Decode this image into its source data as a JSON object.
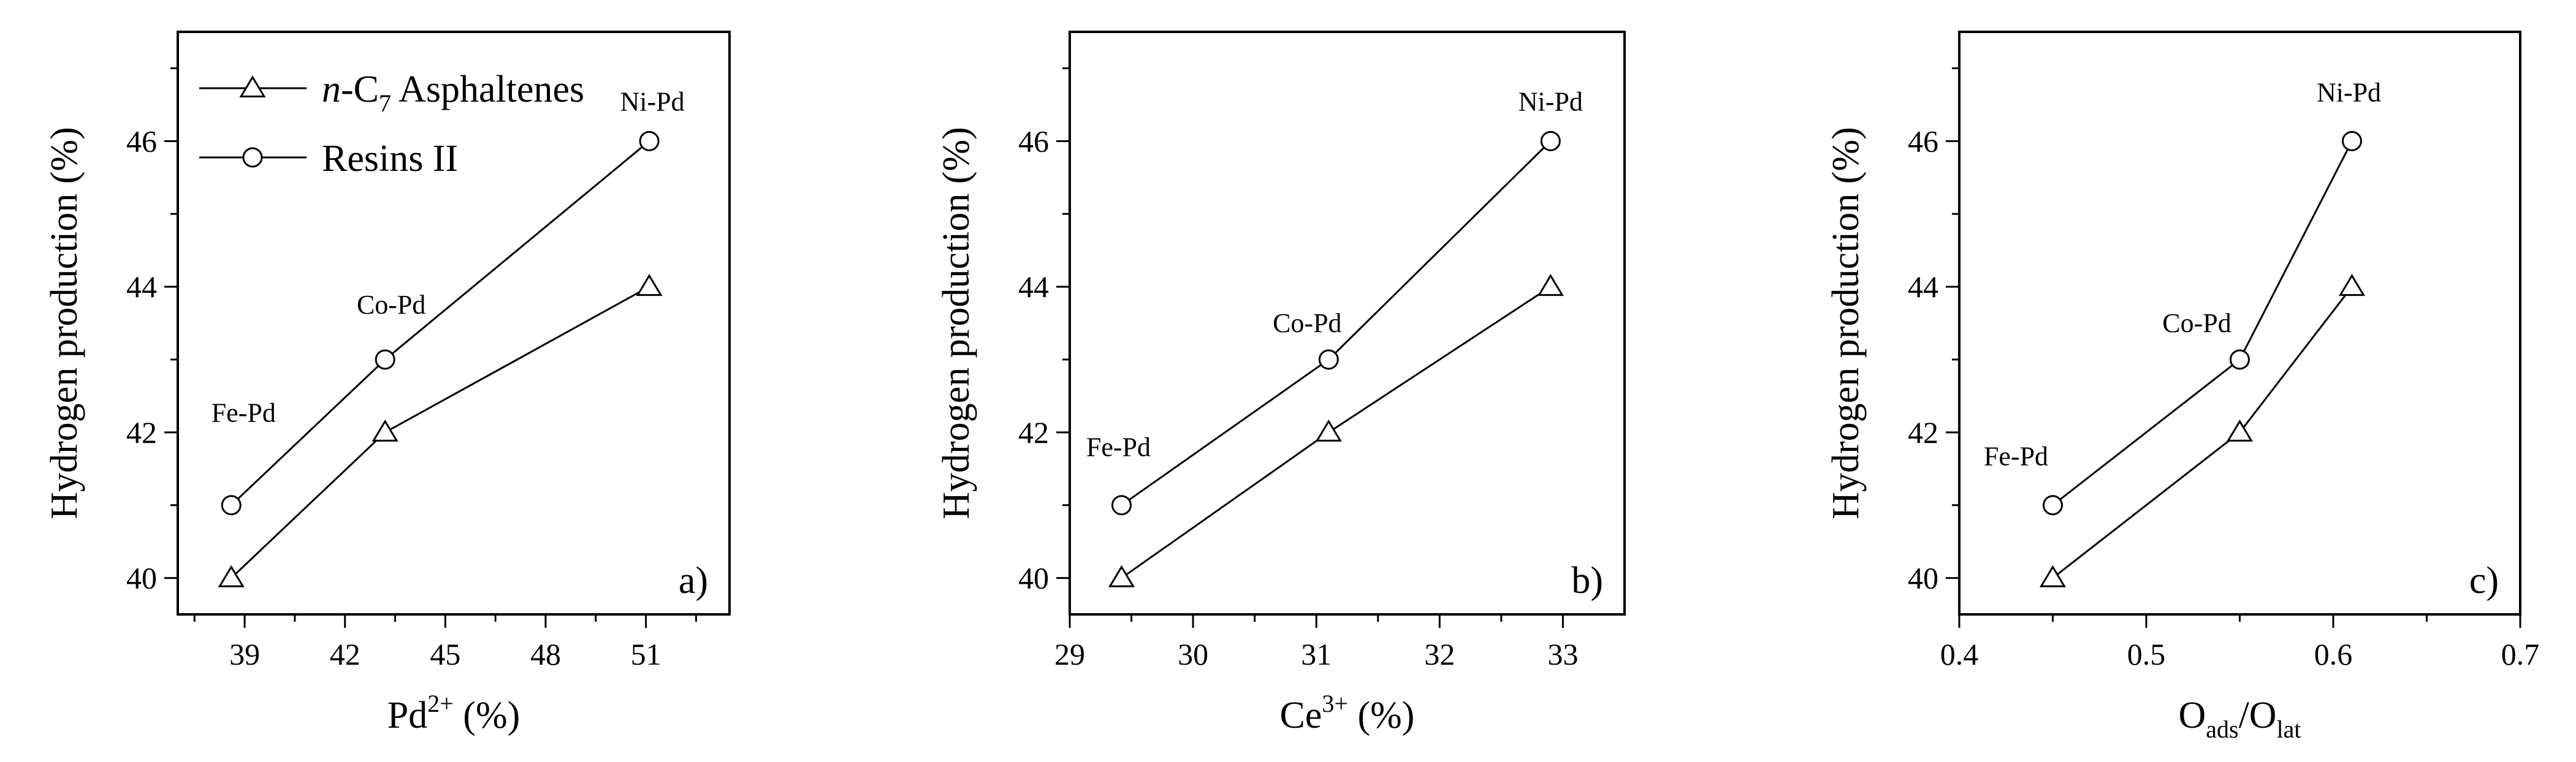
{
  "chart_data": [
    {
      "type": "line",
      "panel_label": "a)",
      "xlabel": "Pd",
      "xlabel_sup": "2+",
      "xlabel_suffix": " (%)",
      "ylabel": "Hydrogen production (%)",
      "xlim": [
        37,
        53.5
      ],
      "ylim": [
        39.5,
        47.5
      ],
      "xticks": [
        39,
        42,
        45,
        48,
        51
      ],
      "xtick_labels": [
        "39",
        "42",
        "45",
        "48",
        "51"
      ],
      "yticks": [
        40,
        42,
        44,
        46
      ],
      "ytick_labels": [
        "40",
        "42",
        "44",
        "46"
      ],
      "point_labels": [
        "Fe-Pd",
        "Co-Pd",
        "Ni-Pd"
      ],
      "legend": {
        "position": "top-left",
        "entries": [
          {
            "italic": "n",
            "text": "-C",
            "sub": "7",
            "rest": " Asphaltenes",
            "marker": "triangle"
          },
          {
            "text": "Resins II",
            "marker": "circle"
          }
        ]
      },
      "series": [
        {
          "marker": "triangle",
          "x": [
            38.6,
            43.2,
            51.1
          ],
          "y": [
            40,
            42,
            44
          ]
        },
        {
          "marker": "circle",
          "x": [
            38.6,
            43.2,
            51.1
          ],
          "y": [
            41,
            43,
            46
          ]
        }
      ]
    },
    {
      "type": "line",
      "panel_label": "b)",
      "xlabel": "Ce",
      "xlabel_sup": "3+",
      "xlabel_suffix": " (%)",
      "ylabel": "Hydrogen production (%)",
      "xlim": [
        29,
        33.5
      ],
      "ylim": [
        39.5,
        47.5
      ],
      "xticks": [
        29,
        30,
        31,
        32,
        33
      ],
      "xtick_labels": [
        "29",
        "30",
        "31",
        "32",
        "33"
      ],
      "yticks": [
        40,
        42,
        44,
        46
      ],
      "ytick_labels": [
        "40",
        "42",
        "44",
        "46"
      ],
      "point_labels": [
        "Fe-Pd",
        "Co-Pd",
        "Ni-Pd"
      ],
      "series": [
        {
          "marker": "triangle",
          "x": [
            29.42,
            31.1,
            32.9
          ],
          "y": [
            40,
            42,
            44
          ]
        },
        {
          "marker": "circle",
          "x": [
            29.42,
            31.1,
            32.9
          ],
          "y": [
            41,
            43,
            46
          ]
        }
      ]
    },
    {
      "type": "line",
      "panel_label": "c)",
      "xlabel": "O",
      "xlabel_sub1": "ads",
      "xlabel_mid": "/O",
      "xlabel_sub2": "lat",
      "ylabel": "Hydrogen production (%)",
      "xlim": [
        0.4,
        0.7
      ],
      "ylim": [
        39.5,
        47.5
      ],
      "xticks": [
        0.4,
        0.5,
        0.6,
        0.7
      ],
      "xtick_labels": [
        "0.4",
        "0.5",
        "0.6",
        "0.7"
      ],
      "yticks": [
        40,
        42,
        44,
        46
      ],
      "ytick_labels": [
        "40",
        "42",
        "44",
        "46"
      ],
      "point_labels": [
        "Fe-Pd",
        "Co-Pd",
        "Ni-Pd"
      ],
      "series": [
        {
          "marker": "triangle",
          "x": [
            0.45,
            0.55,
            0.61
          ],
          "y": [
            40,
            42,
            44
          ]
        },
        {
          "marker": "circle",
          "x": [
            0.45,
            0.55,
            0.61
          ],
          "y": [
            41,
            43,
            46
          ]
        }
      ]
    }
  ]
}
